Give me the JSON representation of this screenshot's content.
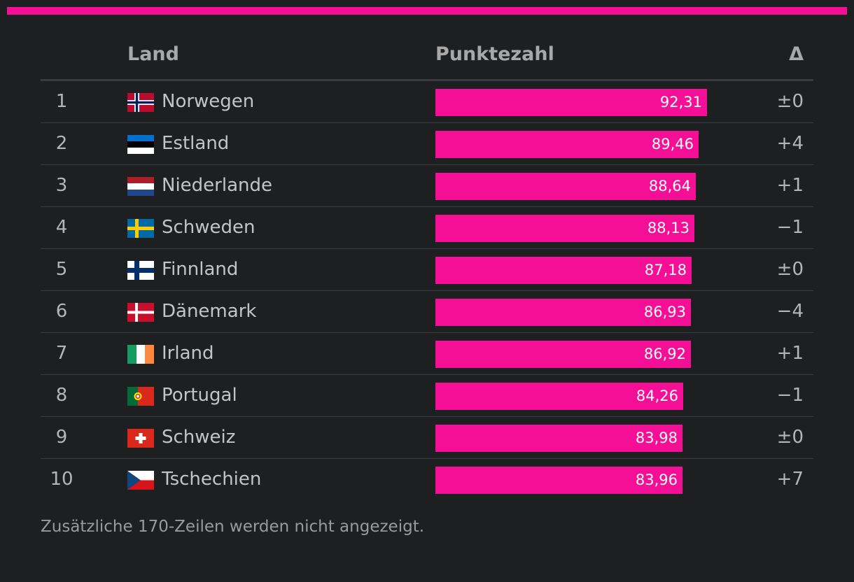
{
  "colors": {
    "accent": "#f50e96",
    "bar": "#f50e96",
    "background": "#1e1f21"
  },
  "table": {
    "headers": {
      "land": "Land",
      "score": "Punktezahl",
      "delta": "Δ"
    },
    "rows": [
      {
        "rank": "1",
        "country": "Norwegen",
        "flag": "norway-flag-icon",
        "score": "92,31",
        "delta": "±0"
      },
      {
        "rank": "2",
        "country": "Estland",
        "flag": "estonia-flag-icon",
        "score": "89,46",
        "delta": "+4"
      },
      {
        "rank": "3",
        "country": "Niederlande",
        "flag": "netherlands-flag-icon",
        "score": "88,64",
        "delta": "+1"
      },
      {
        "rank": "4",
        "country": "Schweden",
        "flag": "sweden-flag-icon",
        "score": "88,13",
        "delta": "−1"
      },
      {
        "rank": "5",
        "country": "Finnland",
        "flag": "finland-flag-icon",
        "score": "87,18",
        "delta": "±0"
      },
      {
        "rank": "6",
        "country": "Dänemark",
        "flag": "denmark-flag-icon",
        "score": "86,93",
        "delta": "−4"
      },
      {
        "rank": "7",
        "country": "Irland",
        "flag": "ireland-flag-icon",
        "score": "86,92",
        "delta": "+1"
      },
      {
        "rank": "8",
        "country": "Portugal",
        "flag": "portugal-flag-icon",
        "score": "84,26",
        "delta": "−1"
      },
      {
        "rank": "9",
        "country": "Schweiz",
        "flag": "switzerland-flag-icon",
        "score": "83,98",
        "delta": "±0"
      },
      {
        "rank": "10",
        "country": "Tschechien",
        "flag": "czechia-flag-icon",
        "score": "83,96",
        "delta": "+7"
      }
    ]
  },
  "chart_data": {
    "type": "table",
    "title": "",
    "columns": [
      "",
      "Land",
      "Punktezahl",
      "Δ"
    ],
    "categories": [
      "Norwegen",
      "Estland",
      "Niederlande",
      "Schweden",
      "Finnland",
      "Dänemark",
      "Irland",
      "Portugal",
      "Schweiz",
      "Tschechien"
    ],
    "values": [
      92.31,
      89.46,
      88.64,
      88.13,
      87.18,
      86.93,
      86.92,
      84.26,
      83.98,
      83.96
    ],
    "xlim": [
      0,
      100
    ]
  },
  "footnote": "Zusätzliche 170-Zeilen werden nicht angezeigt."
}
